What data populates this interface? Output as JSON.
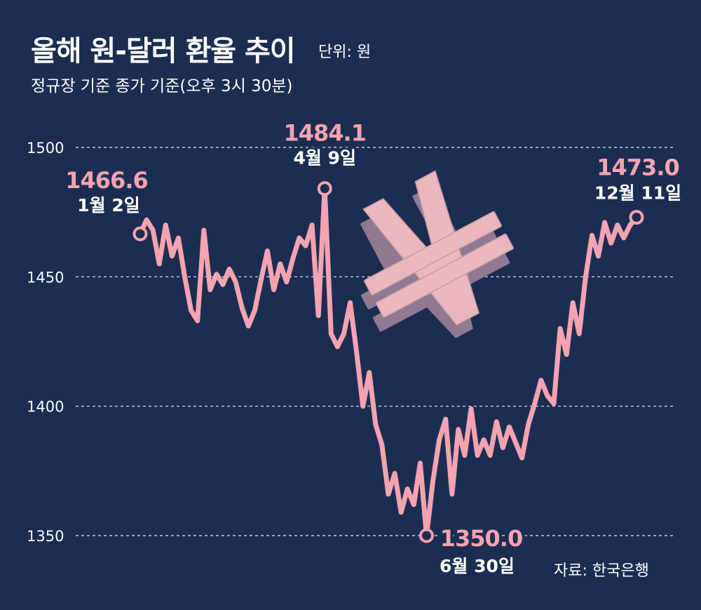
{
  "title": "올해 원-달러 환율 추이",
  "unit": "단위: 원",
  "subtitle": "정규장 기준 종가 기준(오후 3시 30분)",
  "source": "자료: 한국은행",
  "colors": {
    "background": "#1c2d52",
    "line": "#f4a3b0",
    "annotation_value": "#f4a3b0",
    "annotation_date": "#ffffff",
    "marker_fill": "#1c2d52",
    "grid": "#ffffff",
    "won_symbol": "#e9b7bd"
  },
  "won_symbol_icon": "won-currency-3d-icon",
  "chart_data": {
    "type": "line",
    "title": "올해 원-달러 환율 추이",
    "ylabel": "",
    "ylim": [
      1350,
      1500
    ],
    "yticks": [
      1350,
      1400,
      1450,
      1500
    ],
    "grid": true,
    "grid_style": "dashed horizontal",
    "legend": "none",
    "x_range": [
      "1월 2일",
      "12월 11일"
    ],
    "series": [
      {
        "values": [
          1466.6,
          1472,
          1468,
          1455,
          1470,
          1458,
          1465,
          1450,
          1437,
          1433,
          1468,
          1445,
          1451,
          1447,
          1453,
          1448,
          1438,
          1431,
          1437,
          1449,
          1460,
          1445,
          1455,
          1448,
          1457,
          1465,
          1462,
          1470,
          1435,
          1484.1,
          1428,
          1423,
          1428,
          1440,
          1421,
          1400,
          1413,
          1393,
          1385,
          1366,
          1374,
          1359,
          1368,
          1362,
          1378,
          1350.0,
          1371,
          1387,
          1395,
          1366,
          1391,
          1381,
          1399,
          1381,
          1387,
          1381,
          1394,
          1384,
          1392,
          1386,
          1380,
          1393,
          1401,
          1410,
          1404,
          1401,
          1430,
          1420,
          1440,
          1428,
          1450,
          1466,
          1458,
          1471,
          1463,
          1470,
          1465,
          1470,
          1473.0
        ]
      }
    ],
    "annotations": [
      {
        "value": "1466.6",
        "date": "1월 2일",
        "index": 0
      },
      {
        "value": "1484.1",
        "date": "4월 9일",
        "index": 29
      },
      {
        "value": "1350.0",
        "date": "6월 30일",
        "index": 45
      },
      {
        "value": "1473.0",
        "date": "12월 11일",
        "index": 78
      }
    ]
  }
}
